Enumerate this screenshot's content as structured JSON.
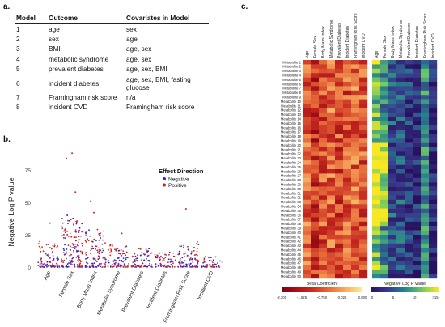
{
  "panels": {
    "a": "a.",
    "b": "b.",
    "c": "c."
  },
  "model_table": {
    "headers": [
      "Model",
      "Outcome",
      "Covariates in Model"
    ],
    "rows": [
      [
        "1",
        "age",
        "sex"
      ],
      [
        "2",
        "sex",
        "age"
      ],
      [
        "3",
        "BMI",
        "age, sex"
      ],
      [
        "4",
        "metabolic syndrome",
        "age, sex"
      ],
      [
        "5",
        "prevalent diabetes",
        "age, sex, BMI"
      ],
      [
        "6",
        "incident diabetes",
        "age, sex, BMI, fasting glucose"
      ],
      [
        "7",
        "Framingham risk score",
        "n/a"
      ],
      [
        "8",
        "incident CVD",
        "Framingham risk score"
      ]
    ]
  },
  "chart_data": [
    {
      "type": "scatter",
      "panel": "b",
      "title": "",
      "xlabel": "",
      "ylabel": "Negative Log P value",
      "categories": [
        "Age",
        "Female Sex",
        "Body Mass Index",
        "Metabolic Syndrome",
        "Prevalent Diabetes",
        "Incident Diabetes",
        "Framingham Risk Score",
        "Incident CVD"
      ],
      "ylim": [
        0,
        90
      ],
      "yticks": [
        0,
        25,
        50,
        75
      ],
      "legend": {
        "title": "Effect Direction",
        "position": "top-right",
        "entries": [
          "Negative",
          "Positive"
        ]
      },
      "colors": {
        "Negative": "#2a2ad4",
        "Positive": "#d42020"
      },
      "notable_points": [
        {
          "category": "Female Sex",
          "y": 88,
          "direction": "Positive"
        },
        {
          "category": "Female Sex",
          "y": 84,
          "direction": "Positive"
        },
        {
          "category": "Female Sex",
          "y": 58,
          "direction": "Positive"
        },
        {
          "category": "Body Mass Index",
          "y": 51,
          "direction": "Positive"
        },
        {
          "category": "Body Mass Index",
          "y": 42,
          "direction": "Positive"
        },
        {
          "category": "Framingham Risk Score",
          "y": 45,
          "direction": "Positive"
        },
        {
          "category": "Age",
          "y": 34,
          "direction": "Positive"
        },
        {
          "category": "Female Sex",
          "y": 40,
          "direction": "Negative"
        },
        {
          "category": "Metabolic Syndrome",
          "y": 26,
          "direction": "Positive"
        }
      ],
      "max_typical": [
        20,
        38,
        30,
        18,
        15,
        12,
        20,
        8
      ],
      "density": [
        90,
        160,
        120,
        90,
        80,
        70,
        90,
        55
      ]
    },
    {
      "type": "heatmap",
      "panel": "c",
      "columns": [
        "Age",
        "Female Sex",
        "Body Mass Index",
        "Metabolic Syndrome",
        "Prevalent Diabetes",
        "Incident Diabetes",
        "Framingham Risk Score",
        "Incident CVD"
      ],
      "rows": [
        "Metabolite 1",
        "Metabolite 2",
        "Metabolite 3",
        "Metabolite 4",
        "Metabolite 5",
        "Metabolite 6",
        "Metabolite 7",
        "Metabolite 8",
        "Metabolite 9",
        "Metabolite 10",
        "Metabolite 11",
        "Metabolite 12",
        "Metabolite 13",
        "Metabolite 14",
        "Metabolite 15",
        "Metabolite 16",
        "Metabolite 17",
        "Metabolite 18",
        "Metabolite 19",
        "Metabolite 20",
        "Metabolite 21",
        "Metabolite 22",
        "Metabolite 23",
        "Metabolite 24",
        "Metabolite 25",
        "Metabolite 26",
        "Metabolite 27",
        "Metabolite 28",
        "Metabolite 29",
        "Metabolite 30",
        "Metabolite 31",
        "Metabolite 32",
        "Metabolite 33",
        "Metabolite 34",
        "Metabolite 35",
        "Metabolite 36",
        "Metabolite 37",
        "Metabolite 38",
        "Metabolite 39",
        "Metabolite 40",
        "Metabolite 41",
        "Metabolite 42",
        "Metabolite 43",
        "Metabolite 44",
        "Metabolite 45",
        "Metabolite 46",
        "Metabolite 47",
        "Metabolite 48",
        "Metabolite 49",
        "Metabolite 50"
      ],
      "beta_legend": {
        "title": "Beta Coefficient",
        "ticks": [
          "-2.300",
          "-1.525",
          "-0.750",
          "0.025",
          "0.800"
        ],
        "range": [
          -2.3,
          0.8
        ]
      },
      "p_legend": {
        "title": "Negative Log P value",
        "ticks": [
          "0",
          "5",
          "10",
          ">15"
        ],
        "range": [
          0,
          16
        ]
      }
    }
  ]
}
